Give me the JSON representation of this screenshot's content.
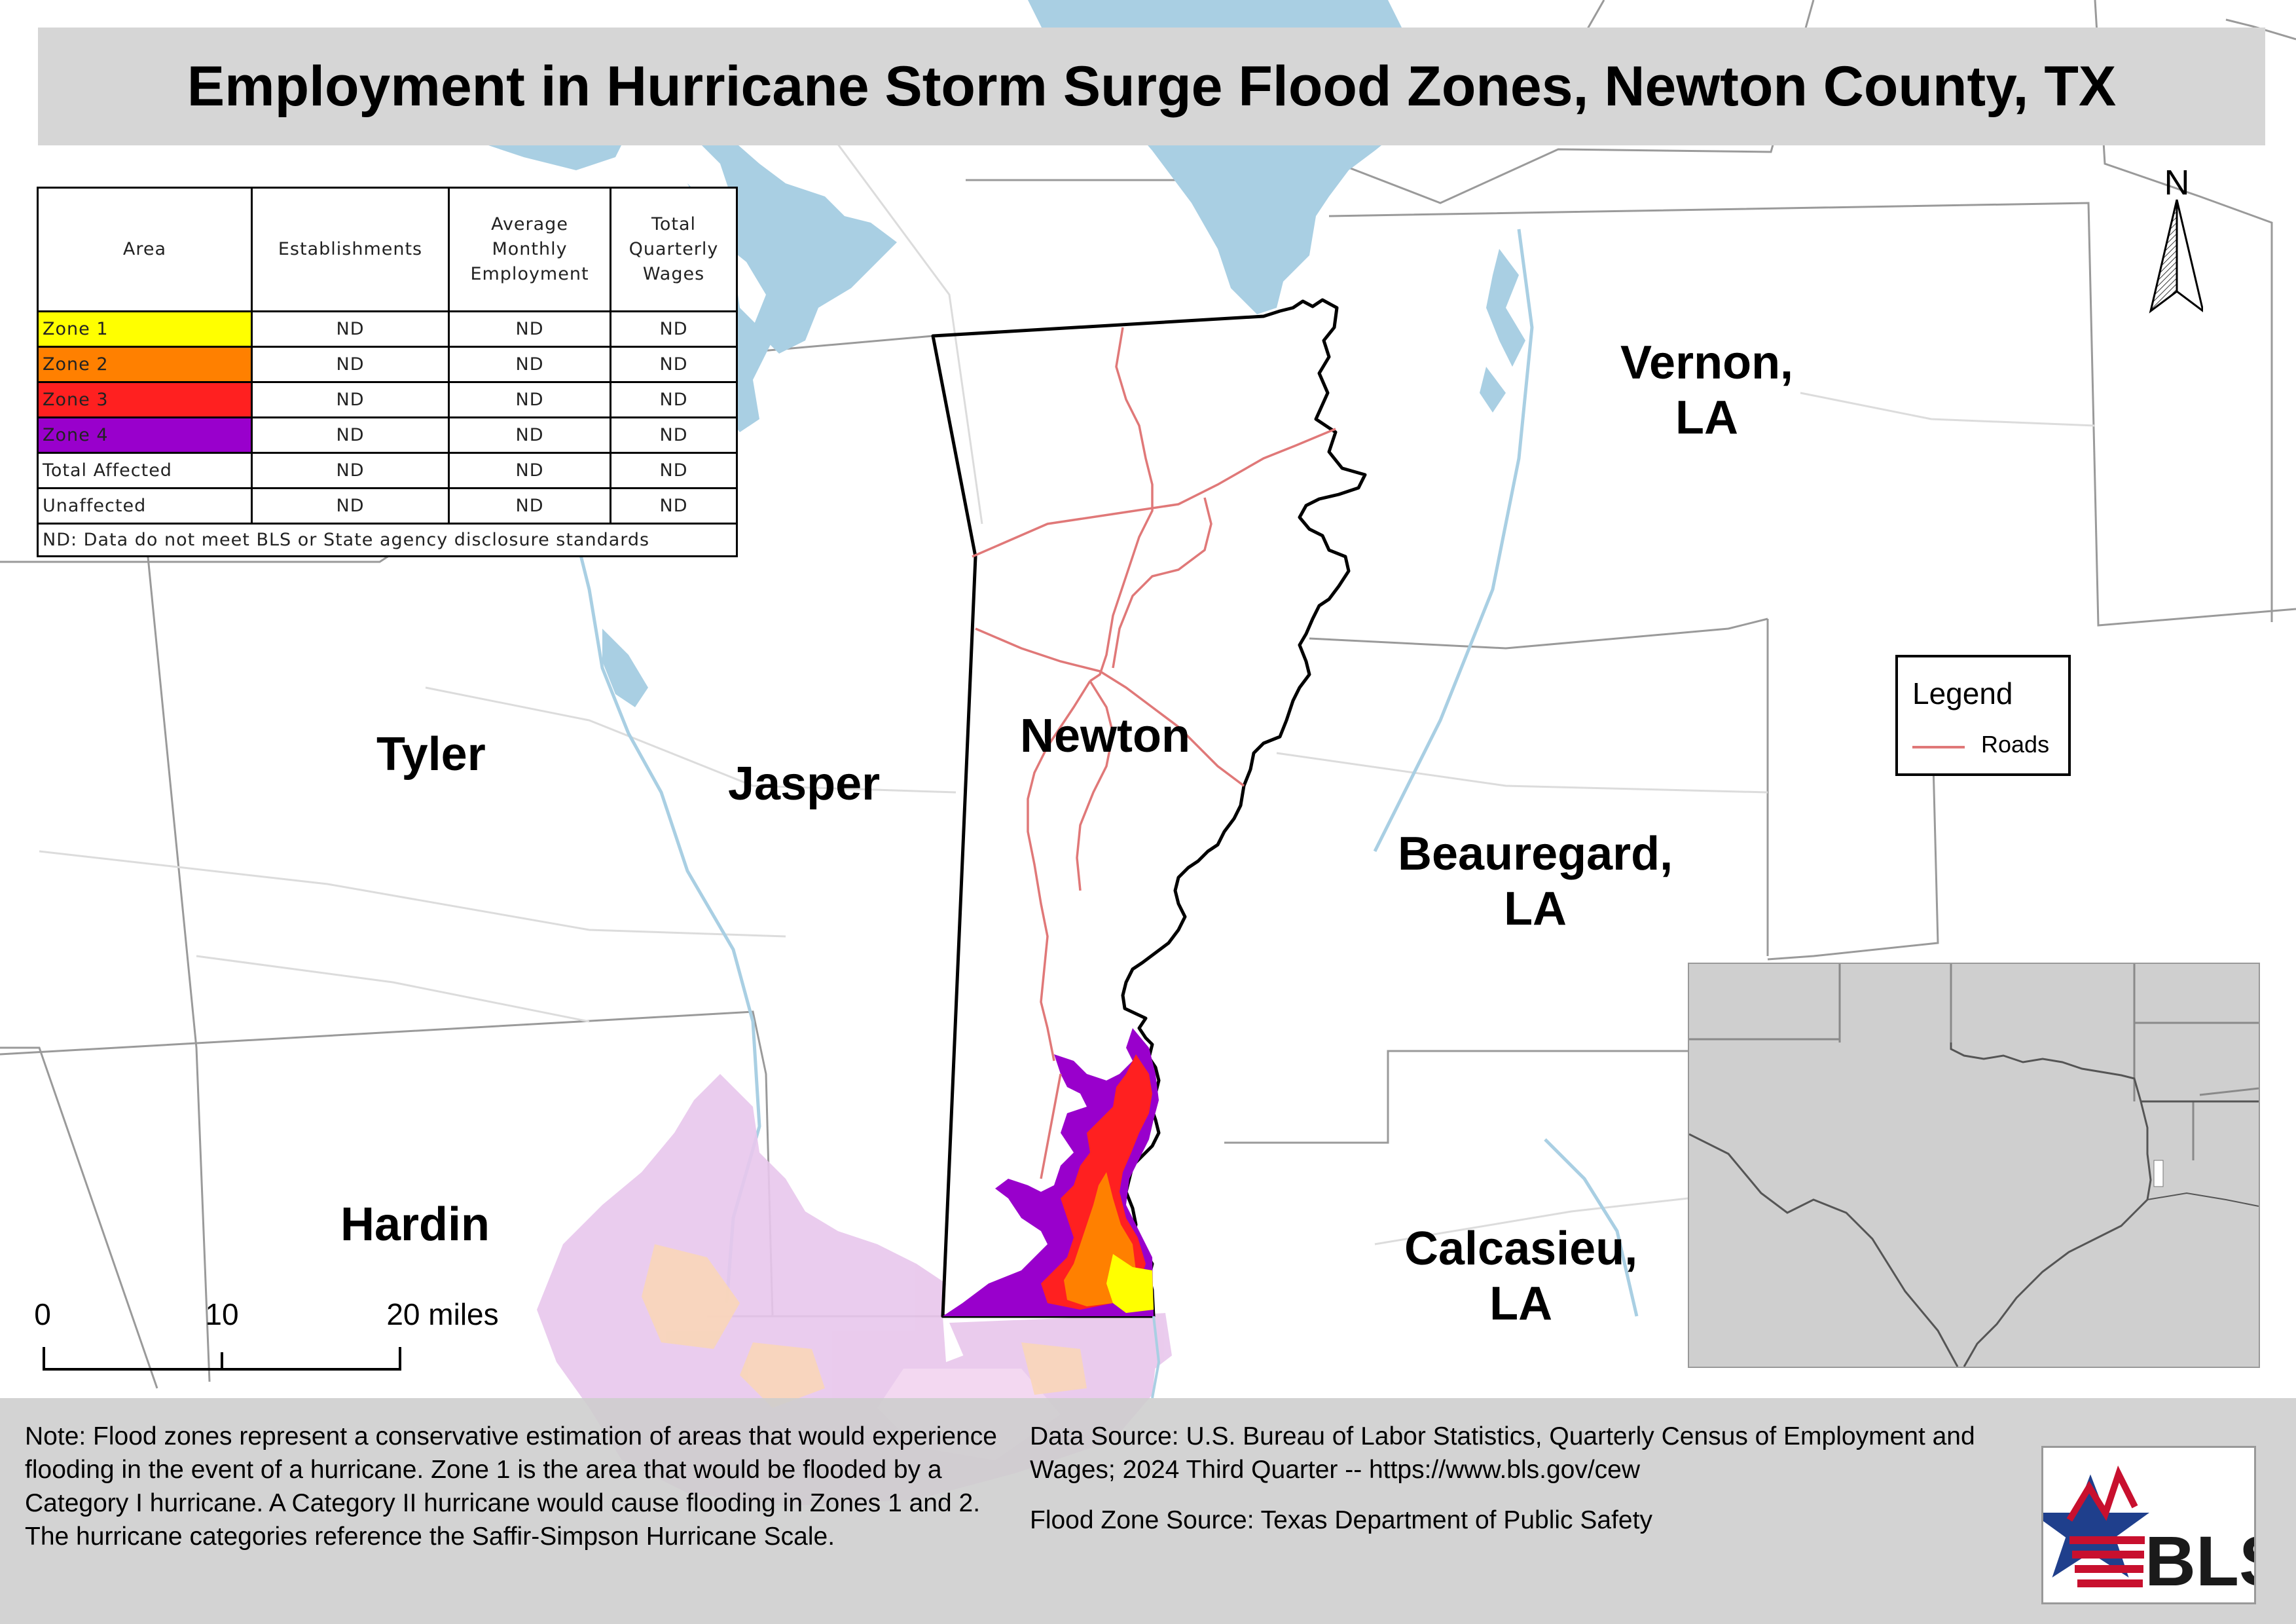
{
  "title": "Employment in Hurricane Storm Surge Flood Zones, Newton County, TX",
  "table": {
    "headers": [
      "Area",
      "Establishments",
      "Average Monthly Employment",
      "Total Quarterly Wages"
    ],
    "rows": [
      {
        "area": "Zone 1",
        "color": "#ffff00",
        "establishments": "ND",
        "employment": "ND",
        "wages": "ND"
      },
      {
        "area": "Zone 2",
        "color": "#ff8000",
        "establishments": "ND",
        "employment": "ND",
        "wages": "ND"
      },
      {
        "area": "Zone 3",
        "color": "#ff2020",
        "establishments": "ND",
        "employment": "ND",
        "wages": "ND"
      },
      {
        "area": "Zone 4",
        "color": "#9900cc",
        "establishments": "ND",
        "employment": "ND",
        "wages": "ND"
      },
      {
        "area": "Total Affected",
        "color": "#ffffff",
        "establishments": "ND",
        "employment": "ND",
        "wages": "ND"
      },
      {
        "area": "Unaffected",
        "color": "#ffffff",
        "establishments": "ND",
        "employment": "ND",
        "wages": "ND"
      }
    ],
    "footnote": "ND: Data do not meet BLS or State agency disclosure standards"
  },
  "counties": {
    "tyler": "Tyler",
    "jasper": "Jasper",
    "newton": "Newton",
    "hardin": "Hardin",
    "vernon": [
      "Vernon,",
      "LA"
    ],
    "beauregard": [
      "Beauregard,",
      "LA"
    ],
    "calcasieu": [
      "Calcasieu,",
      "LA"
    ]
  },
  "legend": {
    "title": "Legend",
    "roads_label": "Roads",
    "roads_color": "#e07878"
  },
  "north_arrow": {
    "label": "N"
  },
  "scale_bar": {
    "labels": [
      "0",
      "10",
      "20 miles"
    ]
  },
  "note": "Note: Flood zones represent a conservative estimation of areas that would experience flooding in the event of a hurricane. Zone 1 is the area that would be flooded by a Category I hurricane. A Category II hurricane would cause flooding in Zones 1 and 2. The hurricane categories reference the Saffir-Simpson Hurricane Scale.",
  "data_source": "Data Source: U.S. Bureau of Labor Statistics, Quarterly Census of Employment and Wages; 2024 Third Quarter -- https://www.bls.gov/cew",
  "flood_source": "Flood Zone Source: Texas Department of Public Safety",
  "logo": {
    "text": "BLS",
    "icon": "bls-star-logo"
  },
  "colors": {
    "water": "#a9cfe3",
    "outside_flood": "#e8c6ec",
    "zone1": "#ffff00",
    "zone2": "#ff8000",
    "zone3": "#ff2020",
    "zone4": "#9900cc",
    "inset_land": "#cccccc"
  }
}
